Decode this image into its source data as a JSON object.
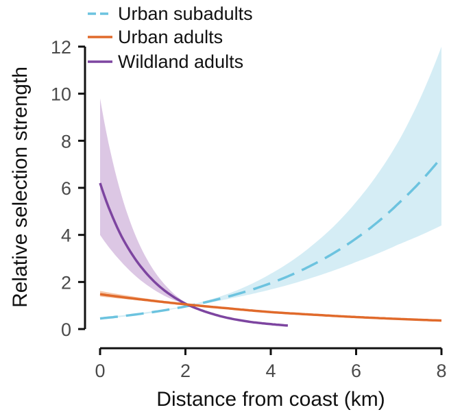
{
  "chart_data": {
    "type": "line",
    "title": "",
    "xlabel": "Distance from coast (km)",
    "ylabel": "Relative selection strength",
    "xlim": [
      0,
      8
    ],
    "ylim": [
      0,
      12
    ],
    "x_ticks": [
      0,
      2,
      4,
      6,
      8
    ],
    "y_ticks": [
      0,
      2,
      4,
      6,
      8,
      10,
      12
    ],
    "grid": false,
    "legend_position": "top-left",
    "series": [
      {
        "name": "Urban subadults",
        "color": "#6cc3df",
        "band_color": "#d5edf5",
        "line_style": "dashed",
        "x": [
          0,
          1,
          2,
          3,
          4,
          5,
          6,
          7,
          8
        ],
        "y": [
          0.45,
          0.66,
          0.96,
          1.38,
          1.95,
          2.75,
          3.85,
          5.35,
          7.3
        ],
        "lower": [
          0.42,
          0.63,
          0.95,
          1.28,
          1.68,
          2.2,
          2.85,
          3.6,
          4.4
        ],
        "upper": [
          0.48,
          0.7,
          0.98,
          1.5,
          2.35,
          3.6,
          5.4,
          8.0,
          12.0
        ]
      },
      {
        "name": "Urban adults",
        "color": "#e06a2b",
        "band_color": "#f6c9ad",
        "line_style": "solid",
        "x": [
          0,
          1,
          2,
          3,
          4,
          5,
          6,
          7,
          8
        ],
        "y": [
          1.48,
          1.25,
          1.05,
          0.88,
          0.72,
          0.61,
          0.51,
          0.43,
          0.36
        ],
        "lower": [
          1.38,
          1.2,
          1.03,
          0.86,
          0.7,
          0.58,
          0.48,
          0.39,
          0.32
        ],
        "upper": [
          1.62,
          1.32,
          1.08,
          0.91,
          0.76,
          0.65,
          0.55,
          0.47,
          0.41
        ]
      },
      {
        "name": "Wildland adults",
        "color": "#7d45a0",
        "band_color": "#dcc7e4",
        "line_style": "solid",
        "x": [
          0,
          0.5,
          1,
          1.5,
          2,
          2.5,
          3,
          3.5,
          4,
          4.4
        ],
        "y": [
          6.2,
          3.95,
          2.55,
          1.65,
          1.08,
          0.72,
          0.47,
          0.31,
          0.21,
          0.15
        ],
        "lower": [
          4.0,
          2.85,
          2.0,
          1.42,
          1.04,
          0.68,
          0.44,
          0.29,
          0.19,
          0.13
        ],
        "upper": [
          9.8,
          5.7,
          3.3,
          1.92,
          1.12,
          0.76,
          0.5,
          0.34,
          0.23,
          0.17
        ]
      }
    ]
  }
}
